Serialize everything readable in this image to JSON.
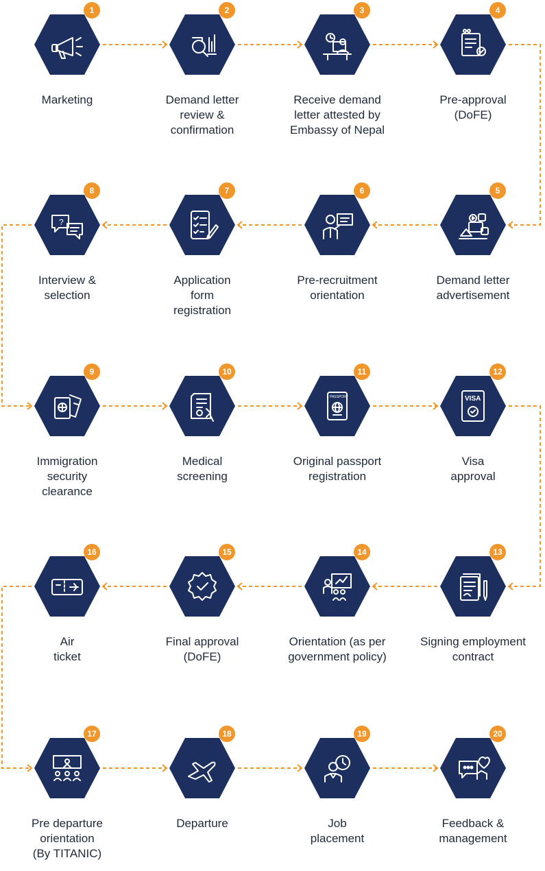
{
  "colors": {
    "hexagon": "#1c2f5e",
    "accent": "#f0962a",
    "text": "#1f2937",
    "icon_stroke": "#ffffff"
  },
  "steps": [
    {
      "num": "1",
      "label": "Marketing",
      "icon": "megaphone-icon"
    },
    {
      "num": "2",
      "label": "Demand letter\nreview &\nconfirmation",
      "icon": "document-review-icon"
    },
    {
      "num": "3",
      "label": "Receive demand\nletter attested by\nEmbassy of Nepal",
      "icon": "desk-worker-icon"
    },
    {
      "num": "4",
      "label": "Pre-approval\n(DoFE)",
      "icon": "approved-document-icon"
    },
    {
      "num": "5",
      "label": "Demand letter\nadvertisement",
      "icon": "social-media-icon"
    },
    {
      "num": "6",
      "label": "Pre-recruitment\norientation",
      "icon": "presenter-icon"
    },
    {
      "num": "7",
      "label": "Application\nform\nregistration",
      "icon": "checklist-icon"
    },
    {
      "num": "8",
      "label": "Interview &\nselection",
      "icon": "chat-bubbles-icon"
    },
    {
      "num": "9",
      "label": "Immigration\nsecurity\nclearance",
      "icon": "passport-ticket-icon"
    },
    {
      "num": "10",
      "label": "Medical\nscreening",
      "icon": "medical-report-icon"
    },
    {
      "num": "11",
      "label": "Original passport\nregistration",
      "icon": "passport-icon"
    },
    {
      "num": "12",
      "label": "Visa\napproval",
      "icon": "visa-icon"
    },
    {
      "num": "13",
      "label": "Signing employment\ncontract",
      "icon": "contract-pen-icon"
    },
    {
      "num": "14",
      "label": "Orientation (as per\ngovernment policy)",
      "icon": "classroom-icon"
    },
    {
      "num": "15",
      "label": "Final approval\n(DoFE)",
      "icon": "check-seal-icon"
    },
    {
      "num": "16",
      "label": "Air\nticket",
      "icon": "air-ticket-icon"
    },
    {
      "num": "17",
      "label": "Pre departure\norientation\n(By TITANIC)",
      "icon": "group-presentation-icon"
    },
    {
      "num": "18",
      "label": "Departure",
      "icon": "airplane-icon"
    },
    {
      "num": "19",
      "label": "Job\nplacement",
      "icon": "employee-clock-icon"
    },
    {
      "num": "20",
      "label": "Feedback &\nmanagement",
      "icon": "feedback-hands-icon"
    }
  ]
}
